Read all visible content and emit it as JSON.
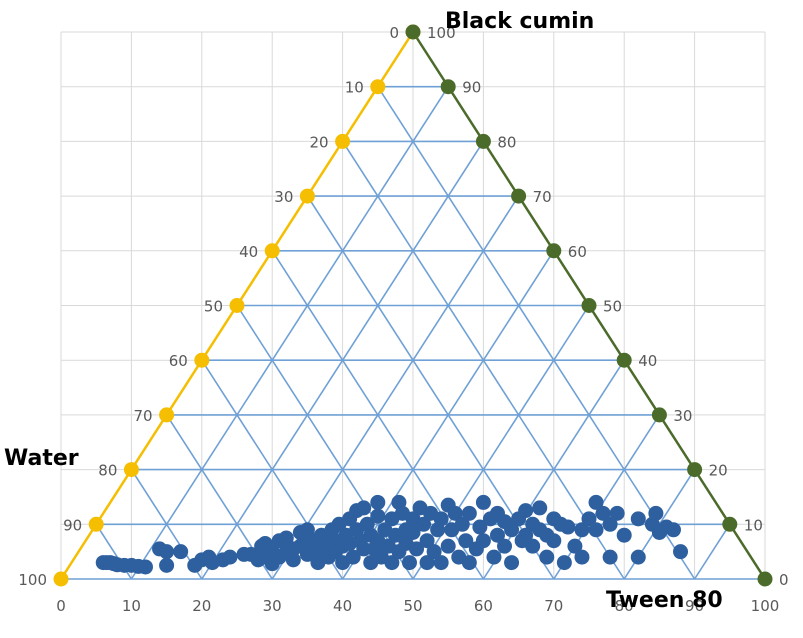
{
  "chart_data": {
    "type": "scatter",
    "subtype": "ternary",
    "vertex_labels": {
      "top": "Black cumin",
      "left": "Water",
      "right": "Tween 80"
    },
    "bottom_ticks": [
      "0",
      "10",
      "20",
      "30",
      "40",
      "50",
      "60",
      "70",
      "80",
      "90",
      "100"
    ],
    "left_ticks": [
      "100",
      "90",
      "80",
      "70",
      "60",
      "50",
      "40",
      "30",
      "20",
      "10",
      "0"
    ],
    "right_ticks": [
      "0",
      "10",
      "20",
      "30",
      "40",
      "50",
      "60",
      "70",
      "80",
      "90",
      "100"
    ],
    "colors": {
      "left_edge": "#f5be00",
      "right_edge": "#4b6b2a",
      "grid": "#6fa0d6",
      "points": "#2e5f9e",
      "background_grid": "#d9d9d9"
    },
    "grid": true,
    "points_xy": [
      [
        6,
        3
      ],
      [
        6.5,
        3
      ],
      [
        7,
        3
      ],
      [
        7.5,
        2.8
      ],
      [
        8,
        2.6
      ],
      [
        9,
        2.5
      ],
      [
        10,
        2.5
      ],
      [
        11,
        2.3
      ],
      [
        12,
        2.2
      ],
      [
        14,
        5.5
      ],
      [
        15,
        5
      ],
      [
        17,
        5
      ],
      [
        15,
        2.5
      ],
      [
        19,
        2.5
      ],
      [
        20,
        3.5
      ],
      [
        21,
        4
      ],
      [
        21.5,
        3
      ],
      [
        23,
        3.5
      ],
      [
        24,
        4
      ],
      [
        26,
        4.5
      ],
      [
        27,
        4.5
      ],
      [
        28,
        3.5
      ],
      [
        28.5,
        6
      ],
      [
        29,
        4
      ],
      [
        29,
        6.5
      ],
      [
        30,
        5
      ],
      [
        30,
        2.8
      ],
      [
        31,
        7
      ],
      [
        31,
        4
      ],
      [
        32,
        7.5
      ],
      [
        32,
        5
      ],
      [
        33,
        5.5
      ],
      [
        33,
        3.5
      ],
      [
        34,
        6
      ],
      [
        34,
        8.5
      ],
      [
        35,
        4.5
      ],
      [
        35,
        6.5
      ],
      [
        35,
        9
      ],
      [
        36,
        5
      ],
      [
        36,
        7
      ],
      [
        36.5,
        3
      ],
      [
        37,
        8
      ],
      [
        37,
        5.5
      ],
      [
        38,
        6.5
      ],
      [
        38,
        4
      ],
      [
        38.5,
        9
      ],
      [
        39,
        7
      ],
      [
        39,
        5
      ],
      [
        39.5,
        10
      ],
      [
        40,
        6
      ],
      [
        40,
        3
      ],
      [
        40.5,
        8
      ],
      [
        41,
        11
      ],
      [
        41,
        6.5
      ],
      [
        41.5,
        4
      ],
      [
        42,
        12.5
      ],
      [
        42,
        9
      ],
      [
        42.5,
        7
      ],
      [
        43,
        5.5
      ],
      [
        43,
        13
      ],
      [
        43.5,
        10
      ],
      [
        44,
        3
      ],
      [
        44,
        8
      ],
      [
        44.5,
        5.5
      ],
      [
        45,
        11.5
      ],
      [
        45,
        7
      ],
      [
        45,
        14
      ],
      [
        45.5,
        4
      ],
      [
        46,
        9
      ],
      [
        46.5,
        6
      ],
      [
        47,
        3
      ],
      [
        47,
        11
      ],
      [
        47.5,
        8
      ],
      [
        48,
        5
      ],
      [
        48,
        14
      ],
      [
        48.5,
        12
      ],
      [
        49,
        9
      ],
      [
        49,
        6.5
      ],
      [
        49.5,
        3
      ],
      [
        50,
        11
      ],
      [
        50,
        8.5
      ],
      [
        50.5,
        5.5
      ],
      [
        51,
        13
      ],
      [
        51.5,
        10
      ],
      [
        52,
        3
      ],
      [
        52,
        7
      ],
      [
        52.5,
        12
      ],
      [
        53,
        5
      ],
      [
        53.5,
        9
      ],
      [
        54,
        11
      ],
      [
        54,
        3
      ],
      [
        55,
        6
      ],
      [
        55,
        13.5
      ],
      [
        55.5,
        9
      ],
      [
        56,
        12
      ],
      [
        56.5,
        4
      ],
      [
        57,
        10
      ],
      [
        57.5,
        7
      ],
      [
        58,
        12
      ],
      [
        58,
        3
      ],
      [
        59,
        5.5
      ],
      [
        59.5,
        9.5
      ],
      [
        60,
        14
      ],
      [
        60,
        7
      ],
      [
        61,
        11
      ],
      [
        61.5,
        4
      ],
      [
        62,
        8
      ],
      [
        62,
        12
      ],
      [
        63,
        10.5
      ],
      [
        63,
        6
      ],
      [
        64,
        9
      ],
      [
        64,
        3
      ],
      [
        65,
        11
      ],
      [
        65.5,
        7
      ],
      [
        66,
        8
      ],
      [
        66,
        12.5
      ],
      [
        67,
        6
      ],
      [
        67,
        10
      ],
      [
        68,
        9
      ],
      [
        68,
        13
      ],
      [
        69,
        4
      ],
      [
        69,
        8
      ],
      [
        70,
        11
      ],
      [
        70,
        7
      ],
      [
        71,
        10
      ],
      [
        71.5,
        3
      ],
      [
        72,
        9.5
      ],
      [
        73,
        6
      ],
      [
        74,
        9
      ],
      [
        74,
        4
      ],
      [
        75,
        11
      ],
      [
        76,
        14
      ],
      [
        76,
        9
      ],
      [
        77,
        12
      ],
      [
        78,
        4
      ],
      [
        78,
        10
      ],
      [
        79,
        12
      ],
      [
        80,
        8
      ],
      [
        82,
        11
      ],
      [
        82,
        4
      ],
      [
        84,
        10
      ],
      [
        84.5,
        12
      ],
      [
        85,
        8.5
      ],
      [
        86,
        9.5
      ],
      [
        87,
        9
      ],
      [
        88,
        5
      ]
    ]
  }
}
